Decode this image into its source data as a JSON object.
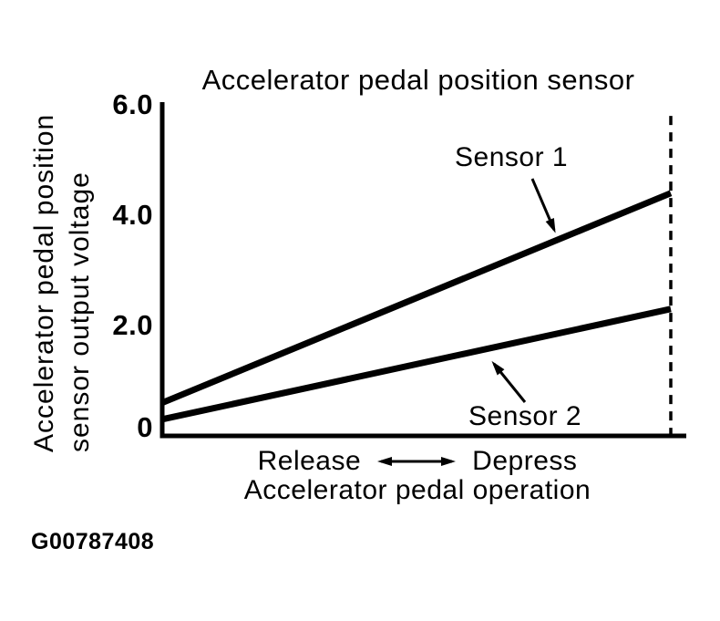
{
  "meta": {
    "background_color": "#ffffff",
    "ink_color": "#000000"
  },
  "figure_code": "G00787408",
  "chart_data": {
    "type": "line",
    "title": "Accelerator pedal position sensor",
    "ylabel": [
      "Accelerator pedal position",
      "sensor output voltage"
    ],
    "xlabel": "Accelerator pedal operation",
    "x_direction": {
      "left": "Release",
      "right": "Depress"
    },
    "ylim": [
      0,
      6.0
    ],
    "yticks": [
      {
        "label": "6.0",
        "value": 6.0
      },
      {
        "label": "4.0",
        "value": 4.0
      },
      {
        "label": "2.0",
        "value": 2.0
      },
      {
        "label": "0",
        "value": 0
      }
    ],
    "grid": false,
    "legend_position": "inline-annotations",
    "series": [
      {
        "name": "Sensor 1",
        "x": [
          "Release",
          "Depress"
        ],
        "values": [
          0.6,
          4.4
        ]
      },
      {
        "name": "Sensor 2",
        "x": [
          "Release",
          "Depress"
        ],
        "values": [
          0.3,
          2.3
        ]
      }
    ],
    "guideline": {
      "style": "dashed",
      "position": "full-depress-end",
      "top_value": 5.8
    }
  }
}
